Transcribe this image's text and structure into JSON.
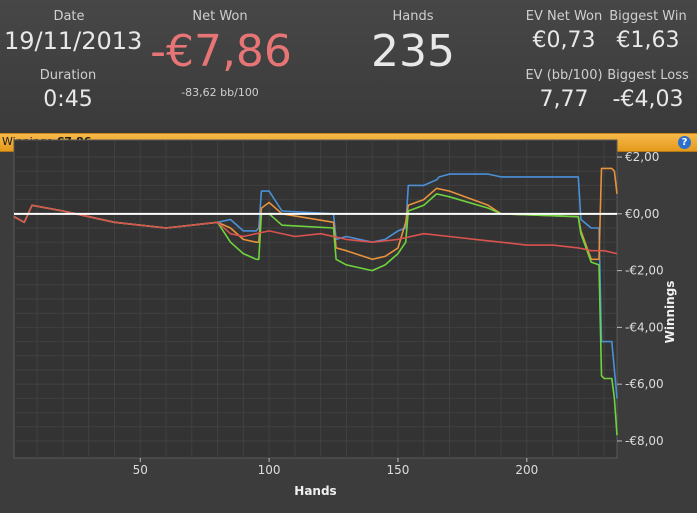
{
  "stats": {
    "date_label": "Date",
    "date": "19/11/2013",
    "duration_label": "Duration",
    "duration": "0:45",
    "net_won_label": "Net Won",
    "net_won": "-€7,86",
    "net_won_bb": "-83,62 bb/100",
    "hands_label": "Hands",
    "hands": "235",
    "ev_net_won_label": "EV Net Won",
    "ev_net_won": "€0,73",
    "biggest_win_label": "Biggest Win",
    "biggest_win": "€1,63",
    "ev_bb_label": "EV (bb/100)",
    "ev_bb": "7,77",
    "biggest_loss_label": "Biggest Loss",
    "biggest_loss": "-€4,03"
  },
  "winnings_bar": {
    "label": "Winnings:",
    "value": "-€7,86",
    "help_icon": "question-icon",
    "help_symbol": "?"
  },
  "colors": {
    "net_won": "#e87575",
    "bar": "#f0a830",
    "blue": "#4a90d9",
    "orange": "#e8923c",
    "green": "#6ed43e",
    "red": "#d9534f"
  },
  "chart_data": {
    "type": "line",
    "xlabel": "Hands",
    "ylabel": "Winnings",
    "xlim": [
      1,
      235
    ],
    "ylim": [
      -8.6,
      2.6
    ],
    "x_ticks": [
      50,
      100,
      150,
      200
    ],
    "x_tick_labels": [
      "50",
      "100",
      "150",
      "200"
    ],
    "y_ticks": [
      2,
      0,
      -2,
      -4,
      -6,
      -8
    ],
    "y_tick_labels": [
      "€2,00",
      "€0,00",
      "-€2,00",
      "-€4,00",
      "-€6,00",
      "-€8,00"
    ],
    "grid": true,
    "series": [
      {
        "color": "#4a90d9",
        "x": [
          1,
          5,
          8,
          20,
          25,
          40,
          60,
          80,
          85,
          90,
          95,
          96,
          97,
          100,
          105,
          125,
          126,
          130,
          140,
          145,
          150,
          153,
          154,
          160,
          165,
          166,
          170,
          185,
          190,
          220,
          221,
          225,
          228,
          229,
          230,
          232,
          233,
          234,
          235
        ],
        "x_note": null,
        "y": [
          -0.1,
          -0.3,
          0.3,
          0.1,
          0.0,
          -0.3,
          -0.5,
          -0.3,
          -0.2,
          -0.6,
          -0.6,
          -0.5,
          0.8,
          0.8,
          0.1,
          0.0,
          -0.9,
          -0.8,
          -1.0,
          -0.9,
          -0.6,
          -0.5,
          1.0,
          1.0,
          1.2,
          1.3,
          1.4,
          1.4,
          1.3,
          1.3,
          -0.2,
          -0.5,
          -0.5,
          -4.5,
          -4.5,
          -4.5,
          -4.5,
          -5.5,
          -6.5
        ]
      },
      {
        "color": "#e8923c",
        "x": [
          1,
          5,
          8,
          20,
          25,
          40,
          60,
          80,
          85,
          90,
          95,
          96,
          97,
          100,
          105,
          125,
          126,
          130,
          140,
          145,
          150,
          153,
          154,
          160,
          165,
          170,
          185,
          190,
          220,
          221,
          225,
          228,
          229,
          230,
          232,
          233,
          234,
          235
        ],
        "y": [
          -0.1,
          -0.3,
          0.3,
          0.1,
          0.0,
          -0.3,
          -0.5,
          -0.3,
          -0.5,
          -0.9,
          -1.0,
          -1.0,
          0.2,
          0.4,
          0.0,
          -0.3,
          -1.2,
          -1.3,
          -1.6,
          -1.5,
          -1.2,
          -0.3,
          0.3,
          0.5,
          0.9,
          0.8,
          0.3,
          0.0,
          -0.1,
          -0.6,
          -1.6,
          -1.6,
          1.6,
          1.6,
          1.6,
          1.6,
          1.5,
          0.7
        ]
      },
      {
        "color": "#6ed43e",
        "x": [
          1,
          5,
          8,
          20,
          25,
          40,
          60,
          80,
          85,
          90,
          95,
          96,
          97,
          100,
          105,
          125,
          126,
          130,
          140,
          145,
          150,
          153,
          154,
          160,
          165,
          170,
          185,
          190,
          220,
          221,
          225,
          228,
          229,
          230,
          232,
          233,
          234,
          235
        ],
        "y": [
          -0.1,
          -0.3,
          0.3,
          0.1,
          0.0,
          -0.3,
          -0.5,
          -0.3,
          -1.0,
          -1.4,
          -1.6,
          -1.6,
          0.0,
          0.0,
          -0.4,
          -0.5,
          -1.6,
          -1.8,
          -2.0,
          -1.8,
          -1.4,
          -1.0,
          0.1,
          0.3,
          0.7,
          0.6,
          0.2,
          0.0,
          -0.1,
          -0.7,
          -1.7,
          -1.8,
          -5.7,
          -5.8,
          -5.8,
          -5.8,
          -6.5,
          -7.8
        ]
      },
      {
        "color": "#d9534f",
        "x": [
          1,
          5,
          8,
          20,
          25,
          40,
          60,
          80,
          85,
          90,
          100,
          110,
          120,
          130,
          140,
          150,
          160,
          170,
          180,
          190,
          200,
          210,
          220,
          225,
          230,
          235
        ],
        "y": [
          -0.1,
          -0.3,
          0.3,
          0.1,
          0.0,
          -0.3,
          -0.5,
          -0.3,
          -0.7,
          -0.8,
          -0.6,
          -0.8,
          -0.7,
          -0.9,
          -1.0,
          -0.9,
          -0.7,
          -0.8,
          -0.9,
          -1.0,
          -1.1,
          -1.1,
          -1.2,
          -1.3,
          -1.3,
          -1.4
        ]
      }
    ],
    "zero_line": 0
  }
}
